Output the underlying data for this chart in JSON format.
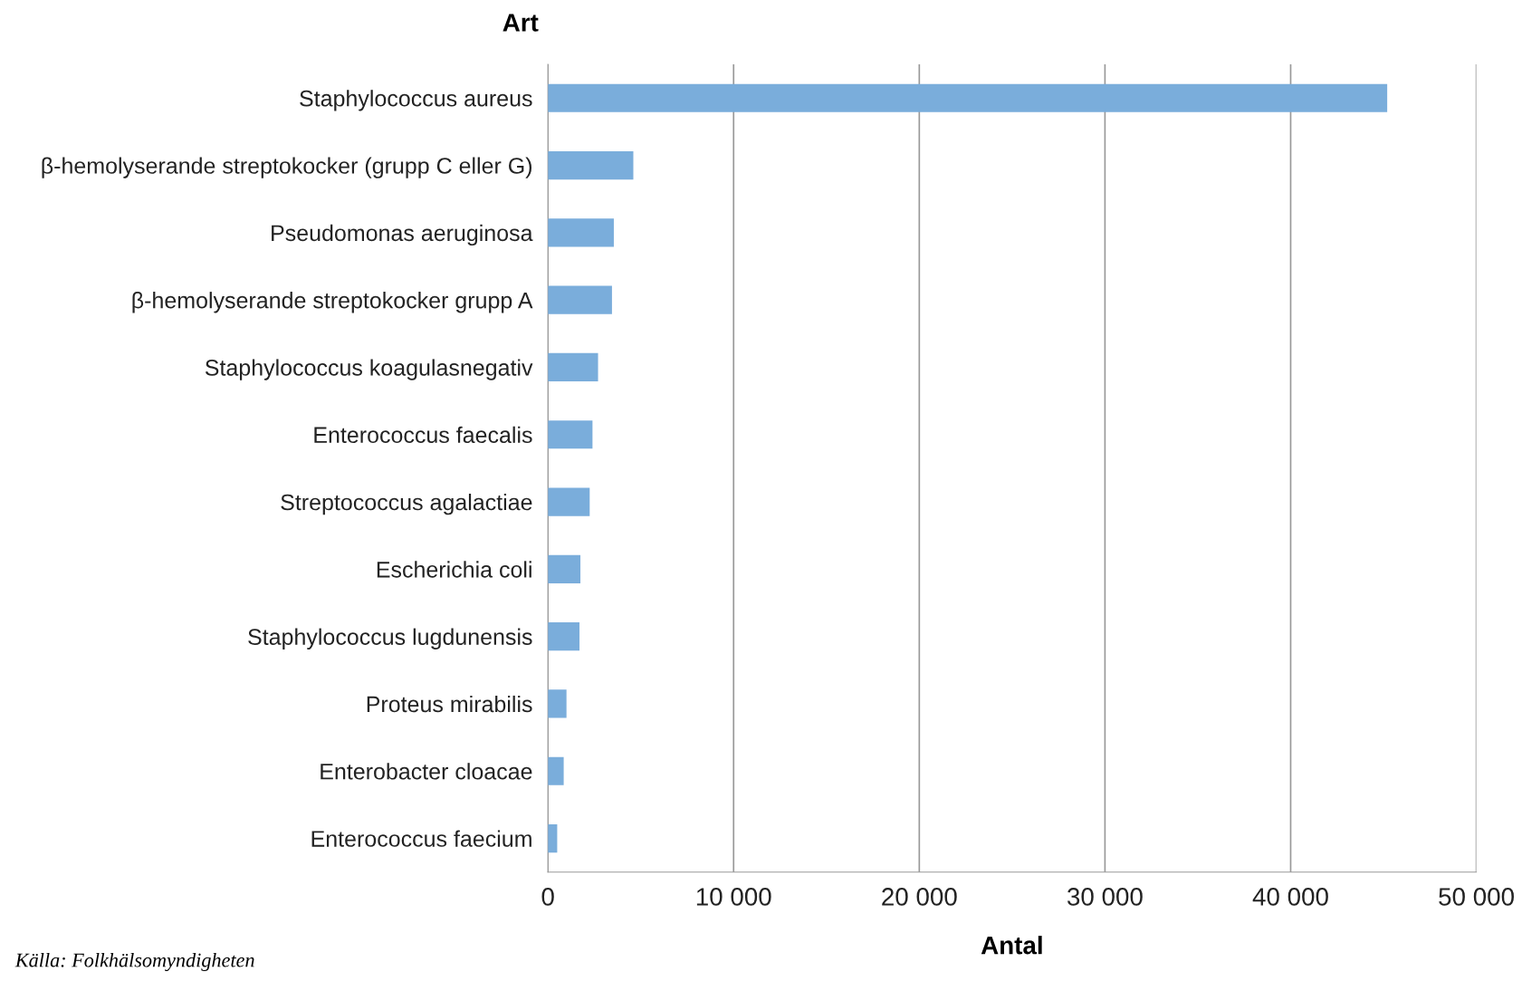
{
  "chart_data": {
    "type": "bar",
    "orientation": "horizontal",
    "ylabel": "Art",
    "xlabel": "Antal",
    "categories": [
      "Staphylococcus aureus",
      "β-hemolyserande streptokocker (grupp C eller G)",
      "Pseudomonas aeruginosa",
      "β-hemolyserande streptokocker grupp A",
      "Staphylococcus koagulasnegativ",
      "Enterococcus faecalis",
      "Streptococcus agalactiae",
      "Escherichia coli",
      "Staphylococcus lugdunensis",
      "Proteus mirabilis",
      "Enterobacter cloacae",
      "Enterococcus faecium"
    ],
    "values": [
      45200,
      4600,
      3550,
      3450,
      2700,
      2400,
      2250,
      1750,
      1700,
      1000,
      850,
      500
    ],
    "color": "#7aaddb",
    "xlim": [
      0,
      50000
    ],
    "xticks": [
      0,
      {
        "value": 10000,
        "label": "10 000"
      },
      {
        "value": 20000,
        "label": "20 000"
      },
      {
        "value": 30000,
        "label": "30 000"
      },
      {
        "value": 40000,
        "label": "40 000"
      },
      {
        "value": 50000,
        "label": "50 000"
      }
    ],
    "grid": "x",
    "annotations": [
      "Källa: Folkhälsomyndigheten"
    ]
  }
}
